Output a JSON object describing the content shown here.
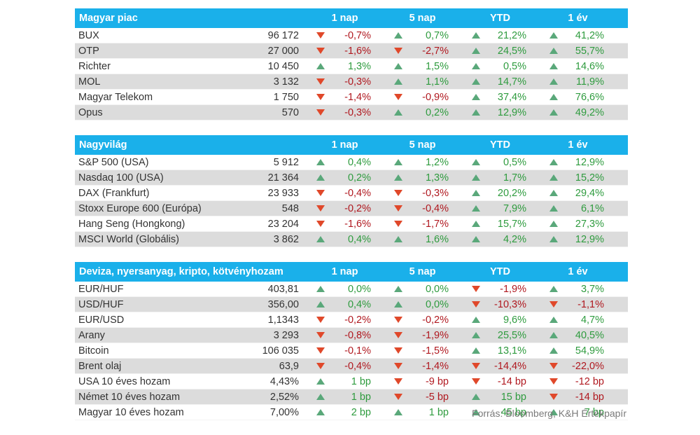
{
  "sections": [
    {
      "title": "Magyar piac",
      "cols": [
        "1 nap",
        "5 nap",
        "YTD",
        "1 év"
      ],
      "rows": [
        {
          "name": "BUX",
          "value": "96 172",
          "changes": [
            {
              "v": "-0,7%",
              "dir": "down"
            },
            {
              "v": "0,7%",
              "dir": "up"
            },
            {
              "v": "21,2%",
              "dir": "up"
            },
            {
              "v": "41,2%",
              "dir": "up"
            }
          ]
        },
        {
          "name": "OTP",
          "value": "27 000",
          "changes": [
            {
              "v": "-1,6%",
              "dir": "down"
            },
            {
              "v": "-2,7%",
              "dir": "down"
            },
            {
              "v": "24,5%",
              "dir": "up"
            },
            {
              "v": "55,7%",
              "dir": "up"
            }
          ]
        },
        {
          "name": "Richter",
          "value": "10 450",
          "changes": [
            {
              "v": "1,3%",
              "dir": "up"
            },
            {
              "v": "1,5%",
              "dir": "up"
            },
            {
              "v": "0,5%",
              "dir": "up"
            },
            {
              "v": "14,6%",
              "dir": "up"
            }
          ]
        },
        {
          "name": "MOL",
          "value": "3 132",
          "changes": [
            {
              "v": "-0,3%",
              "dir": "down"
            },
            {
              "v": "1,1%",
              "dir": "up"
            },
            {
              "v": "14,7%",
              "dir": "up"
            },
            {
              "v": "11,9%",
              "dir": "up"
            }
          ]
        },
        {
          "name": "Magyar Telekom",
          "value": "1 750",
          "changes": [
            {
              "v": "-1,4%",
              "dir": "down"
            },
            {
              "v": "-0,9%",
              "dir": "down"
            },
            {
              "v": "37,4%",
              "dir": "up"
            },
            {
              "v": "76,6%",
              "dir": "up"
            }
          ]
        },
        {
          "name": "Opus",
          "value": "570",
          "changes": [
            {
              "v": "-0,3%",
              "dir": "down"
            },
            {
              "v": "0,2%",
              "dir": "up"
            },
            {
              "v": "12,9%",
              "dir": "up"
            },
            {
              "v": "49,2%",
              "dir": "up"
            }
          ]
        }
      ]
    },
    {
      "title": "Nagyvilág",
      "cols": [
        "1 nap",
        "5 nap",
        "YTD",
        "1 év"
      ],
      "rows": [
        {
          "name": "S&P 500 (USA)",
          "value": "5 912",
          "changes": [
            {
              "v": "0,4%",
              "dir": "up"
            },
            {
              "v": "1,2%",
              "dir": "up"
            },
            {
              "v": "0,5%",
              "dir": "up"
            },
            {
              "v": "12,9%",
              "dir": "up"
            }
          ]
        },
        {
          "name": "Nasdaq 100 (USA)",
          "value": "21 364",
          "changes": [
            {
              "v": "0,2%",
              "dir": "up"
            },
            {
              "v": "1,3%",
              "dir": "up"
            },
            {
              "v": "1,7%",
              "dir": "up"
            },
            {
              "v": "15,2%",
              "dir": "up"
            }
          ]
        },
        {
          "name": "DAX (Frankfurt)",
          "value": "23 933",
          "changes": [
            {
              "v": "-0,4%",
              "dir": "down"
            },
            {
              "v": "-0,3%",
              "dir": "down"
            },
            {
              "v": "20,2%",
              "dir": "up"
            },
            {
              "v": "29,4%",
              "dir": "up"
            }
          ]
        },
        {
          "name": "Stoxx Europe 600 (Európa)",
          "value": "548",
          "changes": [
            {
              "v": "-0,2%",
              "dir": "down"
            },
            {
              "v": "-0,4%",
              "dir": "down"
            },
            {
              "v": "7,9%",
              "dir": "up"
            },
            {
              "v": "6,1%",
              "dir": "up"
            }
          ]
        },
        {
          "name": "Hang Seng (Hongkong)",
          "value": "23 204",
          "changes": [
            {
              "v": "-1,6%",
              "dir": "down"
            },
            {
              "v": "-1,7%",
              "dir": "down"
            },
            {
              "v": "15,7%",
              "dir": "up"
            },
            {
              "v": "27,3%",
              "dir": "up"
            }
          ]
        },
        {
          "name": "MSCI World (Globális)",
          "value": "3 862",
          "changes": [
            {
              "v": "0,4%",
              "dir": "up"
            },
            {
              "v": "1,6%",
              "dir": "up"
            },
            {
              "v": "4,2%",
              "dir": "up"
            },
            {
              "v": "12,9%",
              "dir": "up"
            }
          ]
        }
      ]
    },
    {
      "title": "Deviza, nyersanyag, kripto, kötvényhozam",
      "cols": [
        "1 nap",
        "5 nap",
        "YTD",
        "1 év"
      ],
      "rows": [
        {
          "name": "EUR/HUF",
          "value": "403,81",
          "changes": [
            {
              "v": "0,0%",
              "dir": "up"
            },
            {
              "v": "0,0%",
              "dir": "up"
            },
            {
              "v": "-1,9%",
              "dir": "down"
            },
            {
              "v": "3,7%",
              "dir": "up"
            }
          ]
        },
        {
          "name": "USD/HUF",
          "value": "356,00",
          "changes": [
            {
              "v": "0,4%",
              "dir": "up"
            },
            {
              "v": "0,0%",
              "dir": "up"
            },
            {
              "v": "-10,3%",
              "dir": "down"
            },
            {
              "v": "-1,1%",
              "dir": "down"
            }
          ]
        },
        {
          "name": "EUR/USD",
          "value": "1,1343",
          "changes": [
            {
              "v": "-0,2%",
              "dir": "down"
            },
            {
              "v": "-0,2%",
              "dir": "down"
            },
            {
              "v": "9,6%",
              "dir": "up"
            },
            {
              "v": "4,7%",
              "dir": "up"
            }
          ]
        },
        {
          "name": "Arany",
          "value": "3 293",
          "changes": [
            {
              "v": "-0,8%",
              "dir": "down"
            },
            {
              "v": "-1,9%",
              "dir": "down"
            },
            {
              "v": "25,5%",
              "dir": "up"
            },
            {
              "v": "40,5%",
              "dir": "up"
            }
          ]
        },
        {
          "name": "Bitcoin",
          "value": "106 035",
          "changes": [
            {
              "v": "-0,1%",
              "dir": "down"
            },
            {
              "v": "-1,5%",
              "dir": "down"
            },
            {
              "v": "13,1%",
              "dir": "up"
            },
            {
              "v": "54,9%",
              "dir": "up"
            }
          ]
        },
        {
          "name": "Brent olaj",
          "value": "63,9",
          "changes": [
            {
              "v": "-0,4%",
              "dir": "down"
            },
            {
              "v": "-1,4%",
              "dir": "down"
            },
            {
              "v": "-14,4%",
              "dir": "down"
            },
            {
              "v": "-22,0%",
              "dir": "down"
            }
          ]
        },
        {
          "name": "USA 10 éves hozam",
          "value": "4,43%",
          "changes": [
            {
              "v": "1 bp",
              "dir": "up"
            },
            {
              "v": "-9 bp",
              "dir": "down"
            },
            {
              "v": "-14 bp",
              "dir": "down"
            },
            {
              "v": "-12 bp",
              "dir": "down"
            }
          ]
        },
        {
          "name": "Német 10 éves hozam",
          "value": "2,52%",
          "changes": [
            {
              "v": "1 bp",
              "dir": "up"
            },
            {
              "v": "-5 bp",
              "dir": "down"
            },
            {
              "v": "15 bp",
              "dir": "up"
            },
            {
              "v": "-14 bp",
              "dir": "down"
            }
          ]
        },
        {
          "name": "Magyar 10 éves hozam",
          "value": "7,00%",
          "changes": [
            {
              "v": "2 bp",
              "dir": "up"
            },
            {
              "v": "1 bp",
              "dir": "up"
            },
            {
              "v": "45 bp",
              "dir": "up"
            },
            {
              "v": "7 bp",
              "dir": "up"
            }
          ]
        }
      ]
    }
  ],
  "source": "Forrás: Bloomberg, K&H Értékpapír",
  "colors": {
    "header_bg": "#1ab0ea",
    "alt_row_bg": "#dcdcdc",
    "up": "#2e9b3e",
    "up_triangle": "#5aa87a",
    "down": "#b0181f",
    "down_triangle": "#e0482a"
  },
  "icons": {
    "up": "triangle-up-icon",
    "down": "triangle-down-icon"
  }
}
